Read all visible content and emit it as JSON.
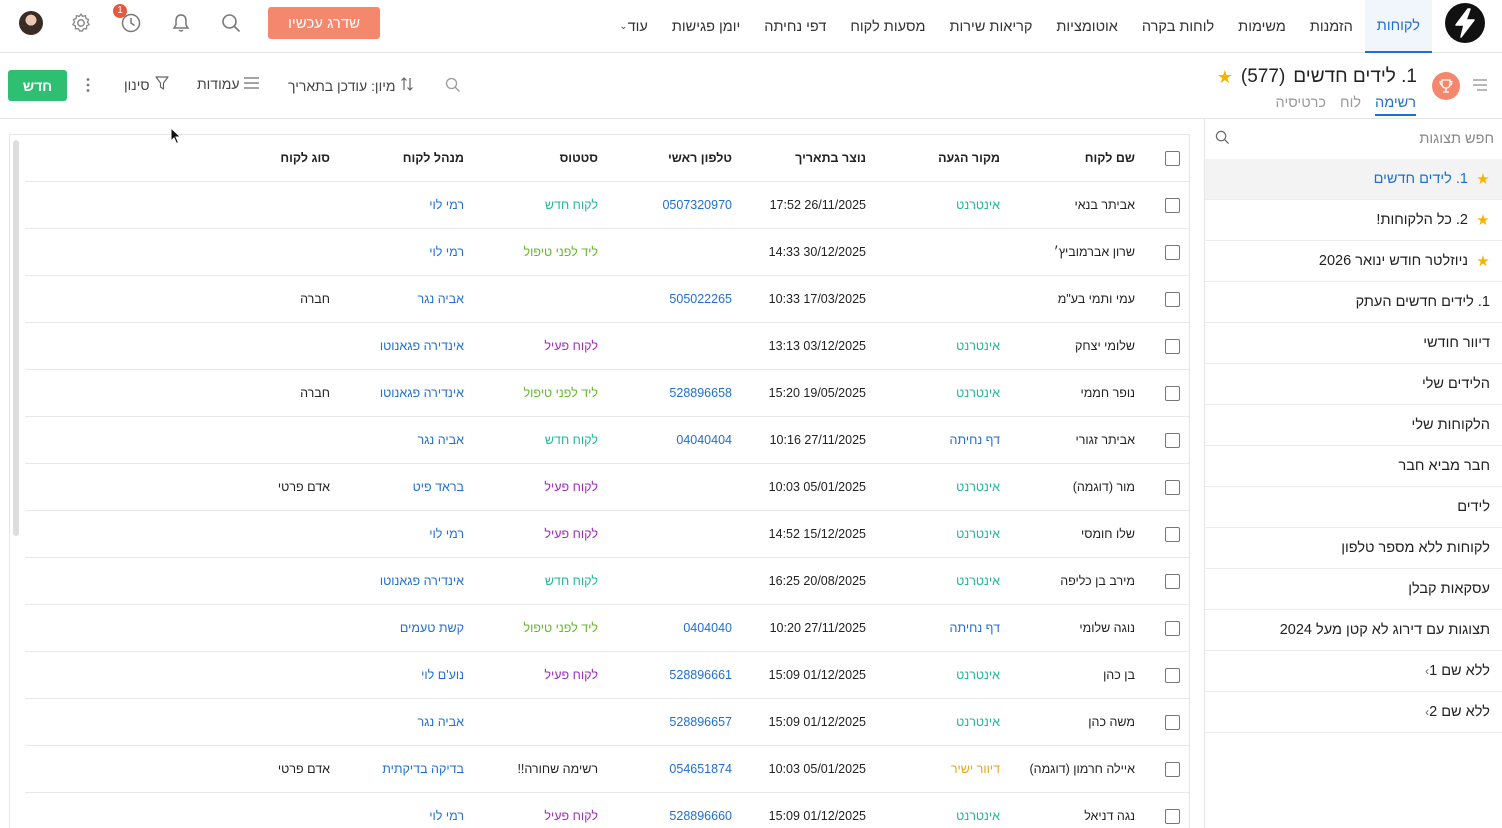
{
  "nav": {
    "tabs": [
      "לקוחות",
      "הזמנות",
      "משימות",
      "לוחות בקרה",
      "אוטומציות",
      "קריאות שירות",
      "מסעות לקוח",
      "דפי נחיתה",
      "יומן פגישות",
      "עוד"
    ],
    "active_tab": "לקוחות",
    "upgrade_label": "שדרג עכשיו",
    "history_badge": "1"
  },
  "view": {
    "title": "1. לידים חדשים",
    "count": "(577)",
    "tabs": [
      "רשימה",
      "לוח",
      "כרטיסיה"
    ],
    "active_tab": "רשימה"
  },
  "toolbar": {
    "sort_label": "מיון: עודכן בתאריך",
    "columns_label": "עמודות",
    "filter_label": "סינון",
    "new_label": "חדש"
  },
  "sidebar": {
    "search_placeholder": "חפש תצוגות",
    "items": [
      {
        "label": "1. לידים חדשים",
        "star": true,
        "active": true
      },
      {
        "label": "2. כל הלקוחות!",
        "star": true
      },
      {
        "label": "ניוזלטר חודש ינואר 2026",
        "star": true
      },
      {
        "label": "1. לידים חדשים העתק"
      },
      {
        "label": "דיוור חודשי"
      },
      {
        "label": "הלידים שלי"
      },
      {
        "label": "הלקוחות שלי"
      },
      {
        "label": "חבר מביא חבר"
      },
      {
        "label": "לידים"
      },
      {
        "label": "לקוחות ללא מספר טלפון"
      },
      {
        "label": "עסקאות קבלן"
      },
      {
        "label": "תצוגות עם דירוג לא קטן מעל 2024"
      },
      {
        "label": "ללא שם 1",
        "group": true
      },
      {
        "label": "ללא שם 2",
        "group": true
      }
    ]
  },
  "table": {
    "headers": {
      "name": "שם לקוח",
      "source": "מקור הגעה",
      "created": "נוצר בתאריך",
      "phone": "טלפון ראשי",
      "status": "סטטוס",
      "manager": "מנהל לקוח",
      "type": "סוג לקוח"
    },
    "rows": [
      {
        "name": "אביתר בנאי",
        "source": "אינטרנט",
        "created": "17:52 26/11/2025",
        "phone": "0507320970",
        "status": "לקוח חדש",
        "manager": "רמי לוי",
        "type": ""
      },
      {
        "name": "שרון אברמוביץ׳",
        "source": "",
        "created": "14:33 30/12/2025",
        "phone": "",
        "status": "ליד לפני טיפול",
        "manager": "רמי לוי",
        "type": ""
      },
      {
        "name": "עמי ותמי בע\"מ",
        "source": "",
        "created": "10:33 17/03/2025",
        "phone": "505022265",
        "status": "",
        "manager": "אביה נגר",
        "type": "חברה"
      },
      {
        "name": "שלומי יצחק",
        "source": "אינטרנט",
        "created": "13:13 03/12/2025",
        "phone": "",
        "status": "לקוח פעיל",
        "manager": "אינדירה פגאנוטו",
        "type": ""
      },
      {
        "name": "נופר חממי",
        "source": "אינטרנט",
        "created": "15:20 19/05/2025",
        "phone": "528896658",
        "status": "ליד לפני טיפול",
        "manager": "אינדירה פגאנוטו",
        "type": "חברה"
      },
      {
        "name": "אביתר זגורי",
        "source": "דף נחיתה",
        "created": "10:16 27/11/2025",
        "phone": "04040404",
        "status": "לקוח חדש",
        "manager": "אביה נגר",
        "type": ""
      },
      {
        "name": "מור (דוגמה)",
        "source": "אינטרנט",
        "created": "10:03 05/01/2025",
        "phone": "",
        "status": "לקוח פעיל",
        "manager": "בראד פיט",
        "type": "אדם פרטי"
      },
      {
        "name": "שלו חומסי",
        "source": "אינטרנט",
        "created": "14:52 15/12/2025",
        "phone": "",
        "status": "לקוח פעיל",
        "manager": "רמי לוי",
        "type": ""
      },
      {
        "name": "מירב בן כליפה",
        "source": "אינטרנט",
        "created": "16:25 20/08/2025",
        "phone": "",
        "status": "לקוח חדש",
        "manager": "אינדירה פגאנוטו",
        "type": ""
      },
      {
        "name": "נוגה שלומי",
        "source": "דף נחיתה",
        "created": "10:20 27/11/2025",
        "phone": "0404040",
        "status": "ליד לפני טיפול",
        "manager": "קשת טעמים",
        "type": ""
      },
      {
        "name": "בן כהן",
        "source": "אינטרנט",
        "created": "15:09 01/12/2025",
        "phone": "528896661",
        "status": "לקוח פעיל",
        "manager": "נוע'ם לוי",
        "type": ""
      },
      {
        "name": "משה כהן",
        "source": "אינטרנט",
        "created": "15:09 01/12/2025",
        "phone": "528896657",
        "status": "",
        "manager": "אביה נגר",
        "type": ""
      },
      {
        "name": "איילה חרמון (דוגמה)",
        "source": "דיוור ישיר",
        "created": "10:03 05/01/2025",
        "phone": "054651874",
        "status": "רשימה שחורה!!",
        "manager": "בדיקה בדיקתית",
        "type": "אדם פרטי"
      },
      {
        "name": "נגה דניאל",
        "source": "אינטרנט",
        "created": "15:09 01/12/2025",
        "phone": "528896660",
        "status": "לקוח פעיל",
        "manager": "רמי לוי",
        "type": ""
      }
    ]
  },
  "colors": {
    "accent": "#1f6fd1",
    "upgrade": "#f4876c",
    "new_button": "#2fbf71",
    "star": "#f5b400",
    "status_new": "#1fb89a",
    "status_lead": "#66b82d",
    "status_active": "#a12bbd"
  }
}
